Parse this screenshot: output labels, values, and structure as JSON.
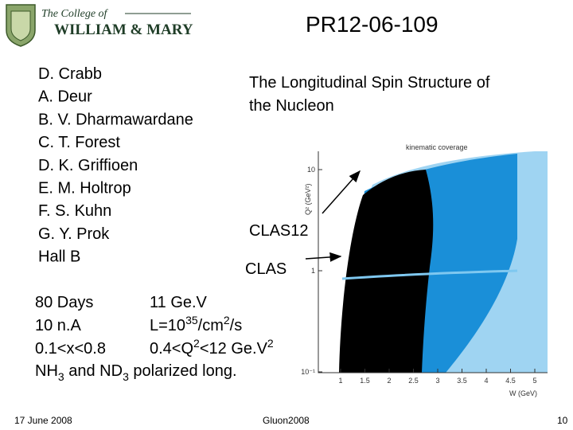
{
  "header": {
    "college_line": "The College of",
    "college_name": "WILLIAM & MARY",
    "title": "PR12-06-109"
  },
  "authors": [
    "D. Crabb",
    "A.  Deur",
    "B.  V. Dharmawardane",
    "C.  T. Forest",
    "D.  K. Griffioen",
    "E.  M. Holtrop",
    "F.  S. Kuhn",
    "G.  Y. Prok",
    "Hall B"
  ],
  "subtitle": [
    "The Longitudinal Spin Structure of",
    "the Nucleon"
  ],
  "labels": {
    "clas12": "CLAS12",
    "clas": "CLAS"
  },
  "details": {
    "left": [
      "80 Days",
      "10 n.A",
      "0.1<x<0.8"
    ],
    "right_0": "11 Ge.V",
    "right_1": [
      "L=10",
      "35",
      "/cm",
      "2",
      "/s"
    ],
    "right_2": [
      "0.4<Q",
      "2",
      "<12 Ge.V",
      "2"
    ],
    "last": [
      "NH",
      "3",
      " and ND",
      "3",
      " polarized long."
    ]
  },
  "figure": {
    "title": "kinematic coverage",
    "ylabel": "Q² (GeV²)",
    "xlabel": "W (GeV)",
    "yticks": [
      "10",
      "1",
      "10⁻¹"
    ],
    "xticks": [
      "1",
      "1.5",
      "2",
      "2.5",
      "3",
      "3.5",
      "4",
      "4.5",
      "5"
    ]
  },
  "footer": {
    "date": "17 June 2008",
    "event": "Gluon2008",
    "page": "10"
  }
}
